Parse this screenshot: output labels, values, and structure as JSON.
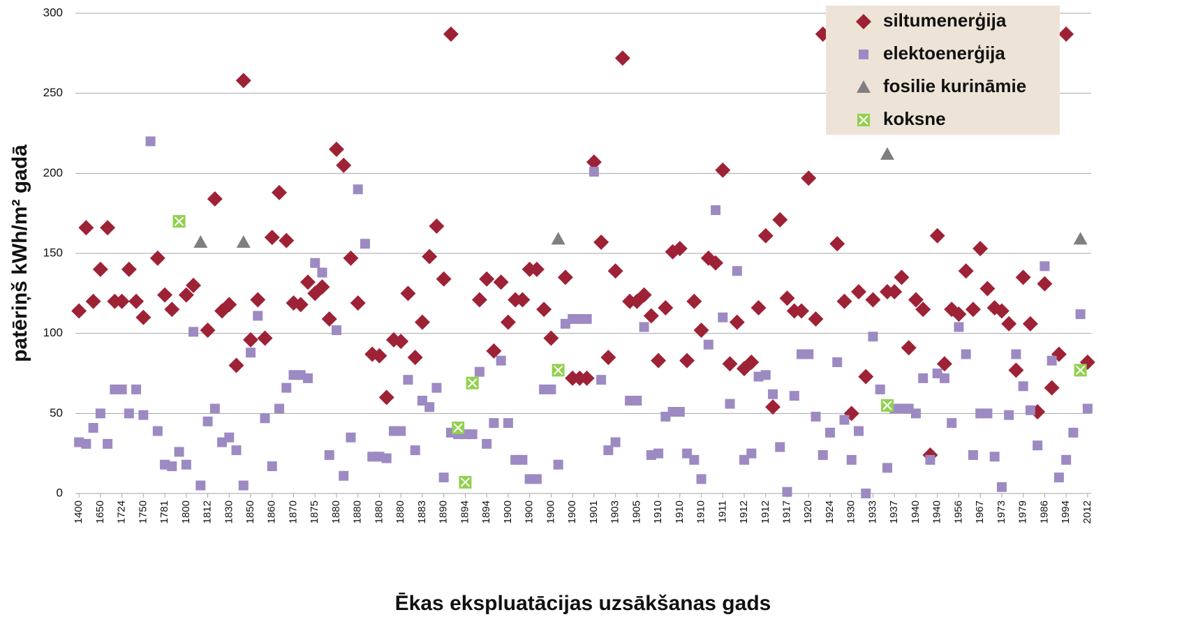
{
  "chart_data": {
    "type": "scatter",
    "categories": [
      "1400",
      null,
      null,
      "1650",
      null,
      null,
      "1724",
      null,
      null,
      "1750",
      null,
      null,
      "1781",
      null,
      null,
      "1800",
      null,
      null,
      "1812",
      null,
      null,
      "1830",
      null,
      null,
      "1850",
      null,
      null,
      "1860",
      null,
      null,
      "1870",
      null,
      null,
      "1875",
      null,
      null,
      "1880",
      null,
      null,
      "1880",
      null,
      null,
      "1880",
      null,
      null,
      "1880",
      null,
      null,
      "1883",
      null,
      null,
      "1890",
      null,
      null,
      "1894",
      null,
      null,
      "1894",
      null,
      null,
      "1900",
      null,
      null,
      "1900",
      null,
      null,
      "1900",
      null,
      null,
      "1900",
      null,
      null,
      "1901",
      null,
      null,
      "1903",
      null,
      null,
      "1905",
      null,
      null,
      "1910",
      null,
      null,
      "1910",
      null,
      null,
      "1910",
      null,
      null,
      "1911",
      null,
      null,
      "1912",
      null,
      null,
      "1912",
      null,
      null,
      "1917",
      null,
      null,
      "1920",
      null,
      null,
      "1924",
      null,
      null,
      "1930",
      null,
      null,
      "1933",
      null,
      null,
      "1937",
      null,
      null,
      "1940",
      null,
      null,
      "1940",
      null,
      null,
      "1956",
      null,
      null,
      "1967",
      null,
      null,
      "1973",
      null,
      null,
      "1979",
      null,
      null,
      "1986",
      null,
      null,
      "1994",
      null,
      null,
      "2012"
    ],
    "x_label": "Ēkas ekspluatācijas uzsākšanas gads",
    "y_label": "patēriņš kWh/m² gadā",
    "ylim": [
      0,
      300
    ],
    "yticks": [
      0,
      50,
      100,
      150,
      200,
      250,
      300
    ],
    "grid": true,
    "legend": "upper right",
    "series": [
      {
        "name": "siltumenerģija",
        "marker": "diamond",
        "color": "#9e2236",
        "values": [
          114,
          166,
          120,
          140,
          166,
          120,
          120,
          140,
          120,
          110,
          null,
          147,
          124,
          115,
          null,
          124,
          130,
          null,
          102,
          184,
          114,
          118,
          80,
          258,
          96,
          121,
          97,
          160,
          188,
          158,
          119,
          118,
          132,
          125,
          129,
          109,
          215,
          205,
          147,
          119,
          null,
          87,
          86,
          60,
          96,
          95,
          125,
          85,
          107,
          148,
          167,
          134,
          287,
          null,
          null,
          null,
          121,
          134,
          89,
          132,
          107,
          121,
          121,
          140,
          140,
          115,
          97,
          null,
          135,
          72,
          72,
          72,
          207,
          157,
          85,
          139,
          272,
          120,
          120,
          124,
          111,
          83,
          116,
          151,
          153,
          83,
          120,
          102,
          147,
          144,
          202,
          81,
          107,
          78,
          82,
          116,
          161,
          54,
          171,
          122,
          114,
          114,
          197,
          109,
          287,
          null,
          156,
          120,
          50,
          126,
          73,
          121,
          null,
          126,
          126,
          135,
          91,
          121,
          115,
          24,
          161,
          81,
          115,
          112,
          139,
          115,
          153,
          128,
          116,
          114,
          106,
          77,
          135,
          106,
          51,
          131,
          66,
          87,
          287,
          null,
          null,
          82
        ]
      },
      {
        "name": "elektoenerģija",
        "marker": "square",
        "color": "#9d8ac3",
        "values": [
          32,
          31,
          41,
          50,
          31,
          65,
          65,
          50,
          65,
          49,
          220,
          39,
          18,
          17,
          26,
          18,
          101,
          5,
          45,
          53,
          32,
          35,
          27,
          5,
          88,
          111,
          47,
          17,
          53,
          66,
          74,
          74,
          72,
          144,
          138,
          24,
          102,
          11,
          35,
          190,
          156,
          23,
          23,
          22,
          39,
          39,
          71,
          27,
          58,
          54,
          66,
          10,
          38,
          37,
          37,
          37,
          76,
          31,
          44,
          83,
          44,
          21,
          21,
          9,
          9,
          65,
          65,
          18,
          106,
          109,
          109,
          109,
          201,
          71,
          27,
          32,
          null,
          58,
          58,
          104,
          24,
          25,
          48,
          51,
          51,
          25,
          21,
          9,
          93,
          177,
          110,
          56,
          139,
          21,
          25,
          73,
          74,
          62,
          29,
          1,
          61,
          87,
          87,
          48,
          24,
          38,
          82,
          46,
          21,
          39,
          0,
          98,
          65,
          16,
          53,
          53,
          53,
          50,
          72,
          21,
          75,
          72,
          44,
          104,
          87,
          24,
          50,
          50,
          23,
          4,
          49,
          87,
          67,
          52,
          30,
          142,
          83,
          10,
          21,
          38,
          112,
          53
        ]
      },
      {
        "name": "fosilie kurināmie",
        "marker": "triangle",
        "color": "#7f7f7f",
        "values": [
          null,
          null,
          null,
          null,
          null,
          null,
          null,
          null,
          null,
          null,
          null,
          null,
          null,
          null,
          null,
          null,
          null,
          157,
          null,
          null,
          null,
          null,
          null,
          157,
          null,
          null,
          null,
          null,
          null,
          null,
          null,
          null,
          null,
          null,
          null,
          null,
          null,
          null,
          null,
          null,
          null,
          null,
          null,
          null,
          null,
          null,
          null,
          null,
          null,
          null,
          null,
          null,
          null,
          null,
          null,
          null,
          null,
          null,
          null,
          null,
          null,
          null,
          null,
          null,
          null,
          null,
          null,
          159,
          null,
          null,
          null,
          null,
          null,
          null,
          null,
          null,
          null,
          null,
          null,
          null,
          null,
          null,
          null,
          null,
          null,
          null,
          null,
          null,
          null,
          null,
          null,
          null,
          null,
          null,
          null,
          null,
          null,
          null,
          null,
          null,
          null,
          null,
          null,
          null,
          null,
          null,
          null,
          null,
          null,
          null,
          null,
          null,
          null,
          212,
          null,
          null,
          null,
          null,
          null,
          null,
          null,
          null,
          null,
          null,
          null,
          null,
          null,
          null,
          null,
          null,
          null,
          null,
          null,
          null,
          null,
          null,
          null,
          null,
          null,
          null,
          159,
          null
        ]
      },
      {
        "name": "koksne",
        "marker": "xbox",
        "color": "#92d050",
        "values": [
          null,
          null,
          null,
          null,
          null,
          null,
          null,
          null,
          null,
          null,
          null,
          null,
          null,
          null,
          170,
          null,
          null,
          null,
          null,
          null,
          null,
          null,
          null,
          null,
          null,
          null,
          null,
          null,
          null,
          null,
          null,
          null,
          null,
          null,
          null,
          null,
          null,
          null,
          null,
          null,
          null,
          null,
          null,
          null,
          null,
          null,
          null,
          null,
          null,
          null,
          null,
          null,
          null,
          41,
          7,
          69,
          null,
          null,
          null,
          null,
          null,
          null,
          null,
          null,
          null,
          null,
          null,
          77,
          null,
          null,
          null,
          null,
          null,
          null,
          null,
          null,
          null,
          null,
          null,
          null,
          null,
          null,
          null,
          null,
          null,
          null,
          null,
          null,
          null,
          null,
          null,
          null,
          null,
          null,
          null,
          null,
          null,
          null,
          null,
          null,
          null,
          null,
          null,
          null,
          null,
          null,
          null,
          null,
          null,
          null,
          null,
          null,
          null,
          55,
          null,
          null,
          null,
          null,
          null,
          null,
          null,
          null,
          null,
          null,
          null,
          null,
          null,
          null,
          null,
          null,
          null,
          null,
          null,
          null,
          null,
          null,
          null,
          null,
          null,
          null,
          77,
          null
        ]
      }
    ]
  }
}
